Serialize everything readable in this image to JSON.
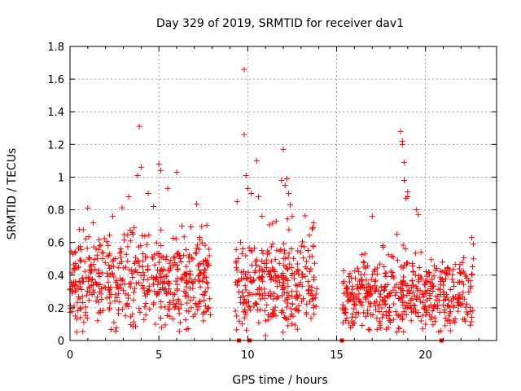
{
  "chart_data": {
    "type": "scatter",
    "title": "Day 329 of 2019, SRMTID for receiver dav1",
    "xlabel": "GPS time / hours",
    "ylabel": "SRMTID / TECUs",
    "xlim": [
      0,
      24
    ],
    "ylim": [
      0,
      1.8
    ],
    "xticks": [
      "0",
      "5",
      "10",
      "15",
      "20"
    ],
    "xtick_values": [
      0,
      5,
      10,
      15,
      20
    ],
    "yticks": [
      "0",
      "0.2",
      "0.4",
      "0.6",
      "0.8",
      "1",
      "1.2",
      "1.4",
      "1.6",
      "1.8"
    ],
    "ytick_values": [
      0,
      0.2,
      0.4,
      0.6,
      0.8,
      1.0,
      1.2,
      1.4,
      1.6,
      1.8
    ],
    "grid": true,
    "marker": "+",
    "color": "#ff0000",
    "zero_markers_x": [
      9.5,
      10.1,
      15.3,
      20.9
    ],
    "clusters": [
      {
        "x_start": 0.0,
        "x_end": 7.9,
        "center": 0.38,
        "spread": 0.14,
        "count": 520
      },
      {
        "x_start": 9.3,
        "x_end": 13.9,
        "center": 0.34,
        "spread": 0.15,
        "count": 300
      },
      {
        "x_start": 15.3,
        "x_end": 22.7,
        "center": 0.28,
        "spread": 0.11,
        "count": 480
      }
    ],
    "notable_points": [
      {
        "x": 0.0,
        "y": 0.31
      },
      {
        "x": 0.3,
        "y": 0.15
      },
      {
        "x": 1.0,
        "y": 0.81
      },
      {
        "x": 1.3,
        "y": 0.72
      },
      {
        "x": 2.4,
        "y": 0.76
      },
      {
        "x": 3.3,
        "y": 0.88
      },
      {
        "x": 3.8,
        "y": 1.01
      },
      {
        "x": 3.9,
        "y": 1.31
      },
      {
        "x": 4.0,
        "y": 1.06
      },
      {
        "x": 4.4,
        "y": 0.9
      },
      {
        "x": 4.7,
        "y": 0.82
      },
      {
        "x": 5.0,
        "y": 1.08
      },
      {
        "x": 5.1,
        "y": 1.04
      },
      {
        "x": 5.5,
        "y": 0.93
      },
      {
        "x": 6.0,
        "y": 1.03
      },
      {
        "x": 6.3,
        "y": 0.7
      },
      {
        "x": 7.3,
        "y": 0.63
      },
      {
        "x": 7.5,
        "y": 0.12
      },
      {
        "x": 9.4,
        "y": 0.85
      },
      {
        "x": 9.6,
        "y": 0.6
      },
      {
        "x": 9.8,
        "y": 1.66
      },
      {
        "x": 9.8,
        "y": 1.26
      },
      {
        "x": 9.9,
        "y": 1.01
      },
      {
        "x": 10.0,
        "y": 0.93
      },
      {
        "x": 10.2,
        "y": 0.9
      },
      {
        "x": 10.5,
        "y": 1.1
      },
      {
        "x": 10.6,
        "y": 0.88
      },
      {
        "x": 10.8,
        "y": 0.76
      },
      {
        "x": 11.0,
        "y": 0.03
      },
      {
        "x": 11.0,
        "y": 0.12
      },
      {
        "x": 11.6,
        "y": 0.73
      },
      {
        "x": 11.9,
        "y": 0.98
      },
      {
        "x": 12.0,
        "y": 1.17
      },
      {
        "x": 12.1,
        "y": 0.95
      },
      {
        "x": 12.2,
        "y": 0.99
      },
      {
        "x": 12.3,
        "y": 0.9
      },
      {
        "x": 12.4,
        "y": 0.83
      },
      {
        "x": 12.5,
        "y": 0.76
      },
      {
        "x": 13.7,
        "y": 0.72
      },
      {
        "x": 13.3,
        "y": 0.16
      },
      {
        "x": 16.5,
        "y": 0.48
      },
      {
        "x": 17.0,
        "y": 0.76
      },
      {
        "x": 17.6,
        "y": 0.58
      },
      {
        "x": 18.4,
        "y": 0.65
      },
      {
        "x": 18.6,
        "y": 1.28
      },
      {
        "x": 18.7,
        "y": 1.22
      },
      {
        "x": 18.7,
        "y": 1.2
      },
      {
        "x": 18.8,
        "y": 1.09
      },
      {
        "x": 18.8,
        "y": 0.98
      },
      {
        "x": 18.9,
        "y": 0.87
      },
      {
        "x": 19.0,
        "y": 0.88
      },
      {
        "x": 19.0,
        "y": 0.91
      },
      {
        "x": 19.5,
        "y": 0.8
      },
      {
        "x": 19.6,
        "y": 0.77
      },
      {
        "x": 22.6,
        "y": 0.63
      },
      {
        "x": 22.7,
        "y": 0.59
      },
      {
        "x": 22.7,
        "y": 0.5
      },
      {
        "x": 20.0,
        "y": 0.1
      },
      {
        "x": 21.4,
        "y": 0.06
      },
      {
        "x": 22.2,
        "y": 0.13
      }
    ]
  }
}
